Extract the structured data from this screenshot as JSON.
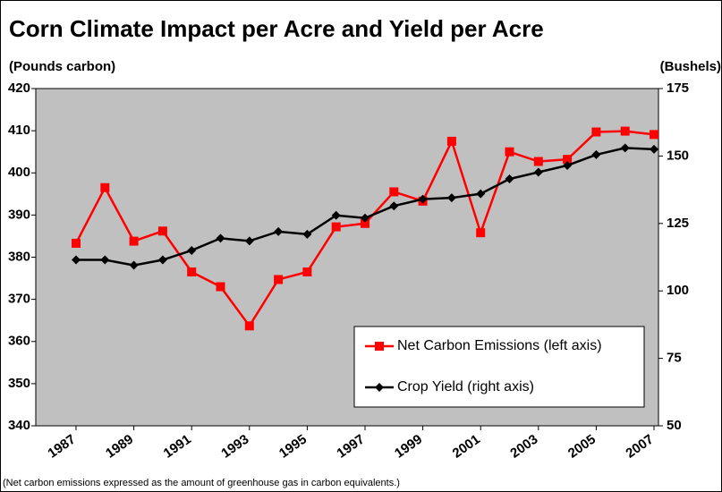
{
  "chart_data": {
    "type": "line",
    "title": "Corn Climate Impact per Acre and Yield per Acre",
    "y_label": "(Pounds carbon)",
    "y2_label": "(Bushels)",
    "note": "(Net carbon emissions expressed as the amount of greenhouse gas in carbon equivalents.)",
    "categories": [
      "1987",
      null,
      "1989",
      null,
      "1991",
      null,
      "1993",
      null,
      "1995",
      null,
      "1997",
      null,
      "1999",
      null,
      "2001",
      null,
      "2003",
      null,
      "2005",
      null,
      "2007"
    ],
    "series": [
      {
        "name": "Net Carbon Emissions (left axis)",
        "color": "#ff0000",
        "marker": "square",
        "values": [
          383.3,
          396.5,
          383.8,
          386.2,
          376.5,
          373,
          363.7,
          374.7,
          376.5,
          387.2,
          388,
          395.5,
          393.3,
          407.5,
          385.8,
          405,
          402.7,
          403.2,
          409.7,
          409.9,
          409.1
        ]
      },
      {
        "name": "Crop Yield (right axis)",
        "color": "#000000",
        "marker": "diamond",
        "axis": "y2",
        "values": [
          111.5,
          111.5,
          109.5,
          111.5,
          115,
          119.5,
          118.5,
          122,
          121,
          128,
          127,
          131.5,
          134,
          134.5,
          136,
          141.5,
          144,
          146.5,
          150.5,
          153,
          152.5
        ]
      }
    ],
    "ylim": [
      340,
      420
    ],
    "yticks": [
      340,
      350,
      360,
      370,
      380,
      390,
      400,
      410,
      420
    ],
    "y2lim": [
      50,
      175
    ],
    "y2ticks": [
      50,
      75,
      100,
      125,
      150,
      175
    ],
    "legend": "lower right",
    "plot_background": "#c0c0c0"
  }
}
